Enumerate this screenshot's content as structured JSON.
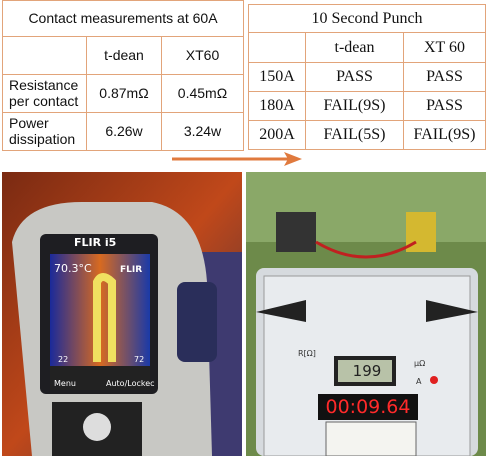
{
  "left_table": {
    "title": "Contact measurements at 60A",
    "header": [
      "t-dean",
      "XT60"
    ],
    "rows": [
      {
        "label": "Resistance per contact",
        "values": [
          "0.87mΩ",
          "0.45mΩ"
        ]
      },
      {
        "label": "Power dissipation",
        "values": [
          "6.26w",
          "3.24w"
        ]
      }
    ]
  },
  "right_table": {
    "title": "10 Second Punch",
    "header": [
      "t-dean",
      "XT 60"
    ],
    "rows": [
      {
        "label": "150A",
        "values": [
          "PASS",
          "PASS"
        ]
      },
      {
        "label": "180A",
        "values": [
          "FAIL(9S)",
          "PASS"
        ]
      },
      {
        "label": "200A",
        "values": [
          "FAIL(5S)",
          "FAIL(9S)"
        ]
      }
    ]
  },
  "left_photo": {
    "brand": "FLIR i5",
    "temperature": "70.3°C",
    "logo": "FLIR",
    "scale_min": "22",
    "scale_max": "72",
    "menu": "Menu",
    "mode": "Auto/Lockec"
  },
  "right_photo": {
    "timer": "00:09.64",
    "reading": "199",
    "range_label": "R[Ω]",
    "unit_1": "μΩ",
    "unit_2": "A"
  }
}
